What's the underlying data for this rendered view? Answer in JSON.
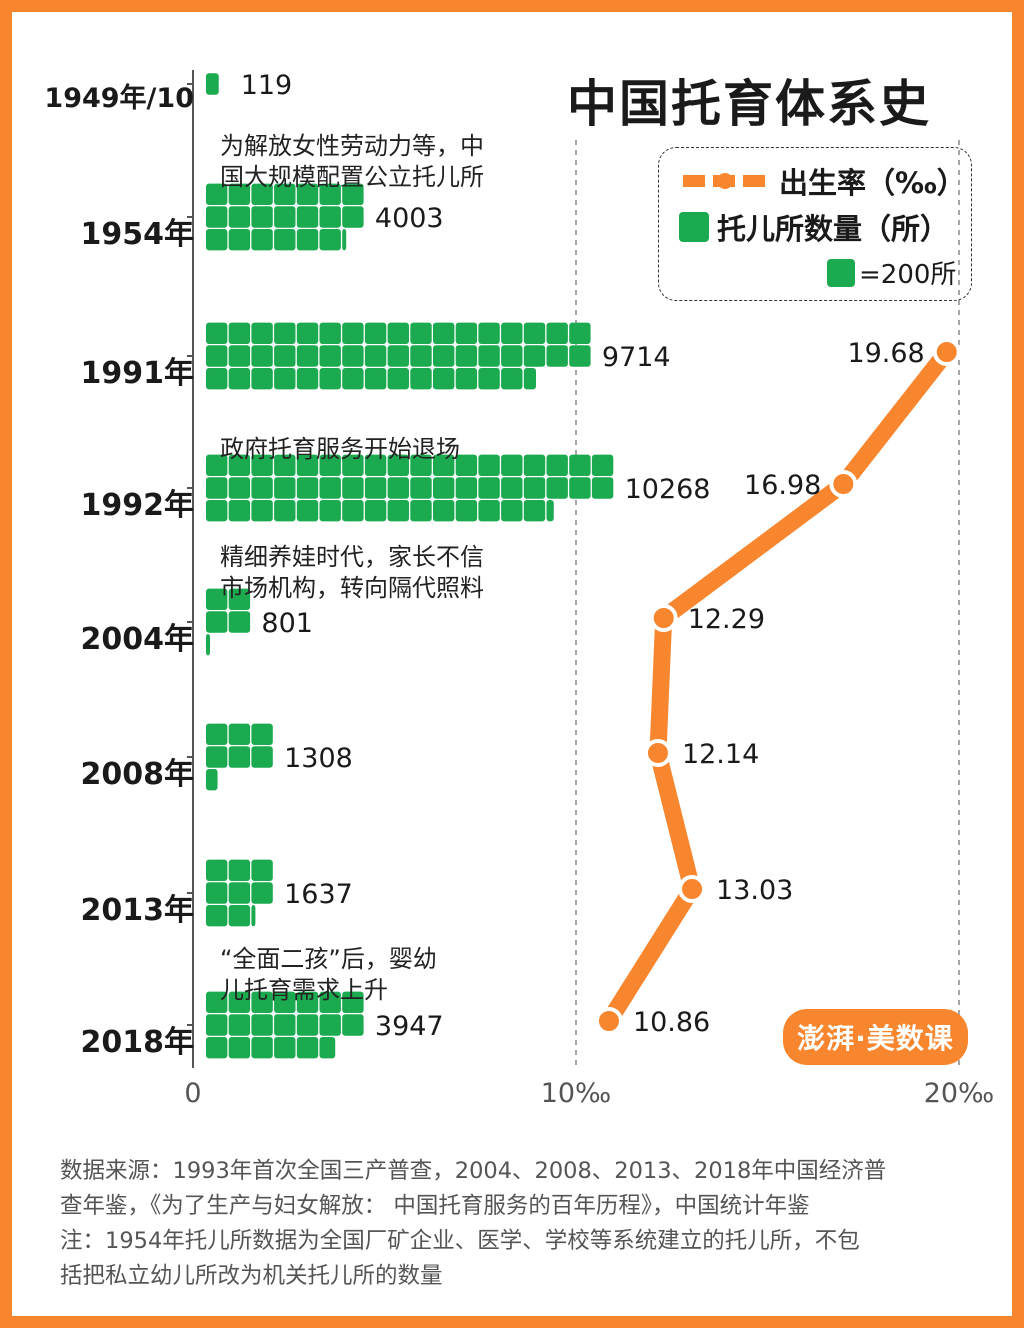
{
  "title": "中国托育体系史",
  "legend": {
    "birth_rate": "出生率（‰）",
    "nurseries": "托儿所数量（所）",
    "unit": "=200所"
  },
  "annotations": {
    "a1954": [
      "为解放女性劳动力等，中",
      "国大规模配置公立托儿所"
    ],
    "a1992": [
      "政府托育服务开始退场"
    ],
    "a2004": [
      "精细养娃时代，家长不信",
      "市场机构，转向隔代照料"
    ],
    "a2018": [
      "“全面二孩”后，婴幼",
      "儿托育需求上升"
    ]
  },
  "footer": [
    "数据来源：1993年首次全国三产普查，2004、2008、2013、2018年中国经济普",
    "查年鉴，《为了生产与妇女解放： 中国托育服务的百年历程》，中国统计年鉴",
    "注：1954年托儿所数据为全国厂矿企业、医学、学校等系统建立的托儿所，不包",
    "括把私立幼儿所改为机关托儿所的数量"
  ],
  "brand": "澎湃·美数课",
  "colors": {
    "orange": "#F8862E",
    "green": "#1BAA4F",
    "border": "#F8862E"
  },
  "chart_data": {
    "type": "bar+line",
    "categories": [
      "1949年/10",
      "1954年",
      "1991年",
      "1992年",
      "2004年",
      "2008年",
      "2013年",
      "2018年"
    ],
    "series": [
      {
        "name": "托儿所数量（所）",
        "type": "pictogram-bar",
        "values": [
          119,
          4003,
          9714,
          10268,
          801,
          1308,
          1637,
          3947
        ],
        "unit_per_icon": 200
      },
      {
        "name": "出生率（‰）",
        "type": "line",
        "values": [
          null,
          null,
          19.68,
          16.98,
          12.29,
          12.14,
          13.03,
          10.86
        ]
      }
    ],
    "xaxis_ticks": [
      "0",
      "10‰",
      "20‰"
    ],
    "birth_rate_range": [
      0,
      20
    ]
  }
}
